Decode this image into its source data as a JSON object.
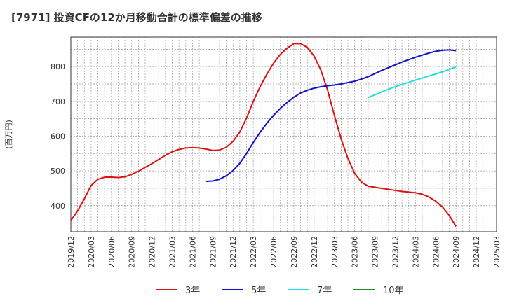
{
  "chart_data": {
    "type": "line",
    "title": "[7971]  投資CFの12か月移動合計の標準偏差の推移",
    "ylabel": "(百万円)",
    "xlabel": "",
    "ylim": [
      325,
      885
    ],
    "yticks": [
      400,
      500,
      600,
      700,
      800
    ],
    "xticks": [
      "2019/12",
      "2020/03",
      "2020/06",
      "2020/09",
      "2020/12",
      "2021/03",
      "2021/06",
      "2021/09",
      "2021/12",
      "2022/03",
      "2022/06",
      "2022/09",
      "2022/12",
      "2023/03",
      "2023/06",
      "2023/09",
      "2023/12",
      "2024/03",
      "2024/06",
      "2024/09",
      "2024/12",
      "2025/03"
    ],
    "grid": true,
    "legend_position": "bottom",
    "series": [
      {
        "name": "3年",
        "color": "#dd1111",
        "x": [
          "2019/12",
          "2020/01",
          "2020/02",
          "2020/03",
          "2020/04",
          "2020/05",
          "2020/06",
          "2020/07",
          "2020/08",
          "2020/09",
          "2020/10",
          "2020/11",
          "2020/12",
          "2021/01",
          "2021/02",
          "2021/03",
          "2021/04",
          "2021/05",
          "2021/06",
          "2021/07",
          "2021/08",
          "2021/09",
          "2021/10",
          "2021/11",
          "2021/12",
          "2022/01",
          "2022/02",
          "2022/03",
          "2022/04",
          "2022/05",
          "2022/06",
          "2022/07",
          "2022/08",
          "2022/09",
          "2022/10",
          "2022/11",
          "2022/12",
          "2023/01",
          "2023/02",
          "2023/03",
          "2023/04",
          "2023/05",
          "2023/06",
          "2023/07",
          "2023/08",
          "2023/09",
          "2023/10",
          "2023/11",
          "2023/12",
          "2024/01",
          "2024/02",
          "2024/03",
          "2024/04",
          "2024/05",
          "2024/06",
          "2024/07",
          "2024/08",
          "2024/09"
        ],
        "values": [
          357,
          385,
          420,
          458,
          476,
          482,
          482,
          481,
          483,
          490,
          499,
          510,
          521,
          533,
          545,
          555,
          562,
          566,
          567,
          566,
          563,
          559,
          560,
          568,
          585,
          612,
          652,
          700,
          742,
          778,
          810,
          835,
          853,
          866,
          866,
          855,
          830,
          790,
          732,
          660,
          592,
          536,
          493,
          468,
          456,
          453,
          450,
          447,
          444,
          441,
          439,
          437,
          433,
          425,
          413,
          396,
          372,
          340
        ]
      },
      {
        "name": "5年",
        "color": "#1111cc",
        "x": [
          "2021/08",
          "2021/09",
          "2021/10",
          "2021/11",
          "2021/12",
          "2022/01",
          "2022/02",
          "2022/03",
          "2022/04",
          "2022/05",
          "2022/06",
          "2022/07",
          "2022/08",
          "2022/09",
          "2022/10",
          "2022/11",
          "2022/12",
          "2023/01",
          "2023/02",
          "2023/03",
          "2023/04",
          "2023/05",
          "2023/06",
          "2023/07",
          "2023/08",
          "2023/09",
          "2023/10",
          "2023/11",
          "2023/12",
          "2024/01",
          "2024/02",
          "2024/03",
          "2024/04",
          "2024/05",
          "2024/06",
          "2024/07",
          "2024/08",
          "2024/09"
        ],
        "values": [
          470,
          471,
          476,
          486,
          501,
          522,
          550,
          582,
          611,
          637,
          660,
          680,
          697,
          712,
          724,
          732,
          738,
          742,
          745,
          747,
          750,
          754,
          758,
          764,
          771,
          780,
          789,
          797,
          805,
          813,
          820,
          827,
          833,
          839,
          844,
          847,
          848,
          846
        ]
      },
      {
        "name": "7年",
        "color": "#22dddd",
        "x": [
          "2023/08",
          "2023/09",
          "2023/10",
          "2023/11",
          "2023/12",
          "2024/01",
          "2024/02",
          "2024/03",
          "2024/04",
          "2024/05",
          "2024/06",
          "2024/07",
          "2024/08",
          "2024/09"
        ],
        "values": [
          711,
          719,
          727,
          735,
          742,
          749,
          755,
          761,
          767,
          773,
          779,
          785,
          792,
          799
        ]
      },
      {
        "name": "10年",
        "color": "#228822",
        "x": [],
        "values": []
      }
    ]
  }
}
